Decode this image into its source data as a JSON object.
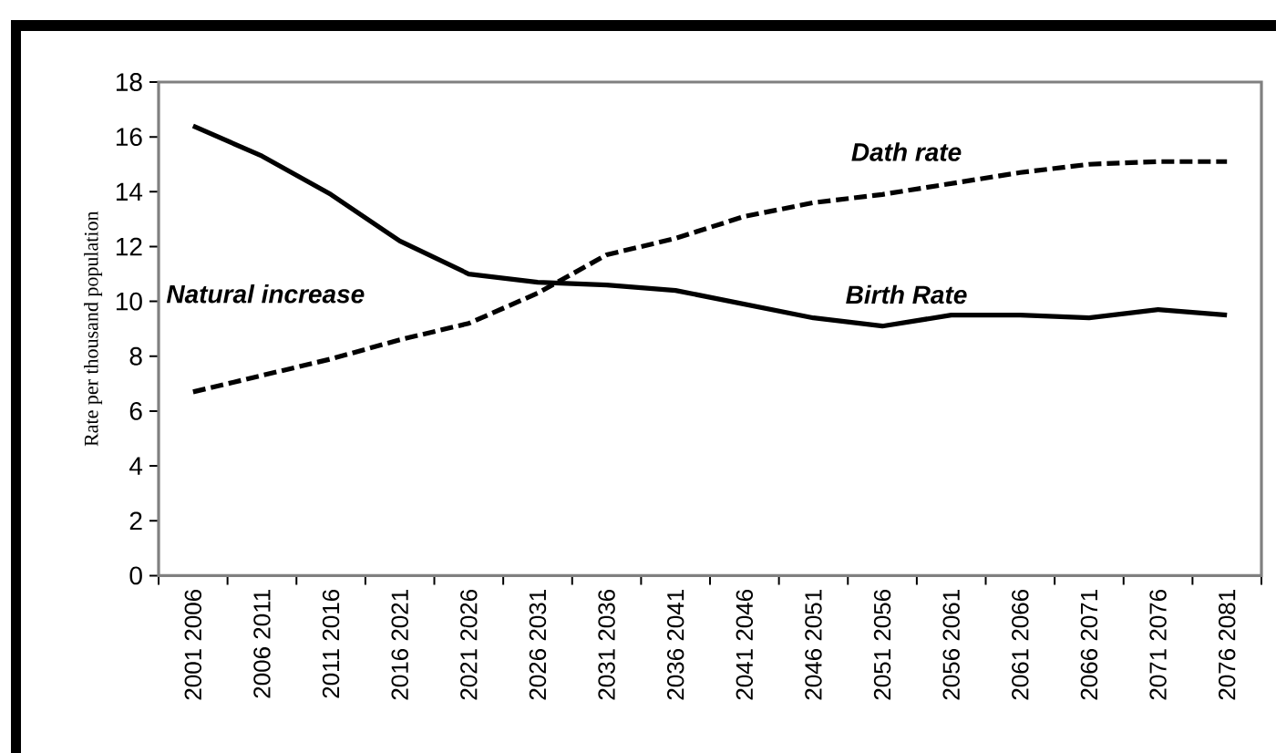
{
  "chart_data": {
    "type": "line",
    "ylabel": "Rate per thousand population",
    "categories": [
      "2001 2006",
      "2006 2011",
      "2011 2016",
      "2016 2021",
      "2021 2026",
      "2026 2031",
      "2031 2036",
      "2036 2041",
      "2041 2046",
      "2046 2051",
      "2051 2056",
      "2056 2061",
      "2061 2066",
      "2066 2071",
      "2071 2076",
      "2076 2081"
    ],
    "series": [
      {
        "name": "Birth Rate",
        "color": "#000000",
        "line_style": "solid",
        "values": [
          16.4,
          15.3,
          13.9,
          12.2,
          11.0,
          10.7,
          10.6,
          10.4,
          9.9,
          9.4,
          9.1,
          9.5,
          9.5,
          9.4,
          9.7,
          9.5
        ]
      },
      {
        "name": "Dath rate",
        "color": "#000000",
        "line_style": "dashed",
        "values": [
          6.7,
          7.3,
          7.9,
          8.6,
          9.2,
          10.3,
          11.7,
          12.3,
          13.1,
          13.6,
          13.9,
          14.3,
          14.7,
          15.0,
          15.1,
          15.1
        ]
      }
    ],
    "ylim": [
      0,
      18
    ],
    "yticks": [
      0,
      2,
      4,
      6,
      8,
      10,
      12,
      14,
      16,
      18
    ],
    "annotations": [
      "Natural increase"
    ]
  }
}
